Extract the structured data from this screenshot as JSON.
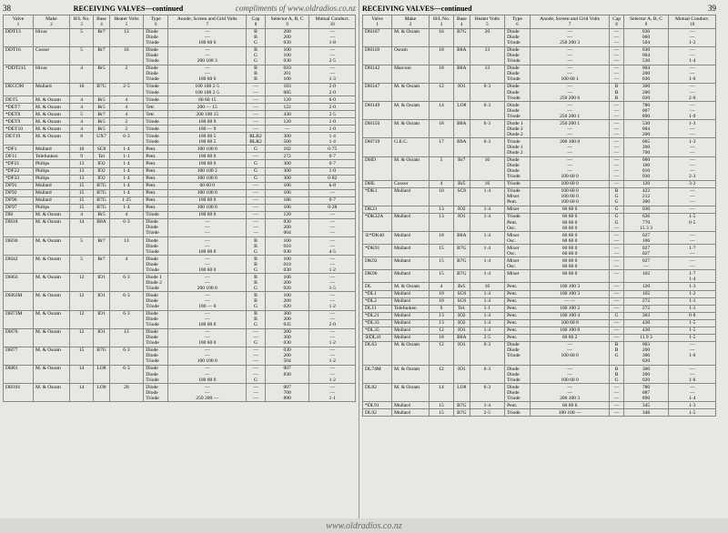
{
  "header": {
    "left_page_num": "38",
    "right_page_num": "39",
    "title_left": "RECEIVING VALVES—continued",
    "title_right": "RECEIVING VALVES—continued",
    "compliments": "compliments of www.oldradios.co.nz"
  },
  "columns": {
    "c1": "Valve",
    "c1n": "1",
    "c2": "Make",
    "c2n": "2",
    "c3": "H/L No.",
    "c3n": "3",
    "c4": "Base",
    "c4n": "4",
    "c5": "Heater Volts",
    "c5n": "5",
    "c6": "Type",
    "c6n": "6",
    "c7": "Anode, Screen and Grid Volts",
    "c7n": "7",
    "c8": "Cap",
    "c8n": "8",
    "c9": "Selector A, B, C",
    "c9n": "9",
    "c10": "Mutual Conduct.",
    "c10n": "10"
  },
  "left_rows": [
    {
      "v": "DDT13",
      "m": "Hivac",
      "hl": "5",
      "b": "Br7",
      "hv": "13",
      "t": "Diode\nDiode\nTriode",
      "a": "—\n—\n100  60  0",
      "c": "B\nB\nG",
      "s": "200\n200\n030",
      "mc": "—\n—\n1·8"
    },
    {
      "v": "DDT16",
      "m": "Cossor",
      "hl": "5",
      "b": "Br7",
      "hv": "16",
      "t": "Diode\nDiode\nTriode",
      "a": "—\n—\n200 100  3",
      "c": "B\nG\nG",
      "s": "100\n100\n030",
      "mc": "—\n—\n2·5"
    },
    {
      "v": "*DDT215",
      "m": "Hivac",
      "hl": "4",
      "b": "Br5",
      "hv": "2",
      "t": "Diode\nDiode\nTriode",
      "a": "—\n—\n100  60  0",
      "c": "B\nB\nB",
      "s": "010\n201\n100",
      "mc": "—\n—\n1·3"
    },
    {
      "v": "DECC90",
      "m": "Mullard",
      "hl": "16",
      "b": "B7G",
      "hv": "2·5",
      "t": "Triode\nTriode",
      "a": "100 100 2·5\n100 100 2·5",
      "c": "—\n—",
      "s": "183\n085",
      "mc": "2·0\n2·0"
    },
    {
      "v": "DET5",
      "m": "M. & Osram",
      "hl": "4",
      "b": "Br5",
      "hv": "4",
      "t": "Triode",
      "a": "60  60 15",
      "c": "—",
      "s": "120",
      "mc": "6·0"
    },
    {
      "v": "*DET7",
      "m": "M. & Osram",
      "hl": "4",
      "b": "Br5",
      "hv": "4",
      "t": "Tetr.",
      "a": "200 —  15",
      "c": "—",
      "s": "122",
      "mc": "2·0"
    },
    {
      "v": "*DET8",
      "m": "M. & Osram",
      "hl": "5",
      "b": "Br7",
      "hv": "4",
      "t": "Tetr.",
      "a": "200 100 15",
      "c": "—",
      "s": "430",
      "mc": "2·5"
    },
    {
      "v": "*DET9",
      "m": "M. & Osram",
      "hl": "4",
      "b": "Br5",
      "hv": "2",
      "t": "Triode",
      "a": "100  60  9",
      "c": "—",
      "s": "120",
      "mc": "1·0"
    },
    {
      "v": "*DET10",
      "m": "M. & Osram",
      "hl": "4",
      "b": "Br5",
      "hv": "2",
      "t": "Triode",
      "a": "100  —  9",
      "c": "—",
      "s": "—",
      "mc": "1·0"
    },
    {
      "v": "DET19",
      "m": "M. & Osram",
      "hl": "8",
      "b": "UX7",
      "hv": "6·3",
      "t": "Triode\nTriode",
      "a": "100  60  5\n100  60  5",
      "c": "RLB2\nBLR2",
      "s": "300\n500",
      "mc": "1·4\n1·4"
    },
    {
      "v": "*DF1",
      "m": "Mullard",
      "hl": "10",
      "b": "SC8",
      "hv": "1·4",
      "t": "Pent.",
      "a": "100 100  0",
      "c": "G",
      "s": "102",
      "mc": "0·75"
    },
    {
      "v": "DF11",
      "m": "Telefunken",
      "hl": "9",
      "b": "Tel",
      "hv": "1·1",
      "t": "Pent.",
      "a": "100  60  0",
      "c": "—",
      "s": "272",
      "mc": "0·7"
    },
    {
      "v": "*DF21",
      "m": "Philips",
      "hl": "13",
      "b": "IO2",
      "hv": "1·4",
      "t": "Pent.",
      "a": "100  60  0",
      "c": "G",
      "s": "300",
      "mc": "0·7"
    },
    {
      "v": "*DF22",
      "m": "Philips",
      "hl": "13",
      "b": "IO2",
      "hv": "1·4",
      "t": "Pent.",
      "a": "100 100  2",
      "c": "G",
      "s": "300",
      "mc": "1·0"
    },
    {
      "v": "*DF33",
      "m": "Philips",
      "hl": "13",
      "b": "IO2",
      "hv": "1·4",
      "t": "Pent.",
      "a": "100 100  0",
      "c": "G",
      "s": "300",
      "mc": "0·82"
    },
    {
      "v": "DF91",
      "m": "Mullard",
      "hl": "15",
      "b": "B7G",
      "hv": "1·4",
      "t": "Pent.",
      "a": "60  60  0",
      "c": "—",
      "s": "106",
      "mc": "h·8"
    },
    {
      "v": "DF92",
      "m": "Mullard",
      "hl": "15",
      "b": "B7G",
      "hv": "1·4",
      "t": "Pent.",
      "a": "100 100  0",
      "c": "—",
      "s": "106",
      "mc": "—"
    },
    {
      "v": "DF96",
      "m": "Mullard",
      "hl": "15",
      "b": "B7G",
      "hv": "1·25",
      "t": "Pent.",
      "a": "100  60  0",
      "c": "—",
      "s": "186",
      "mc": "0·7"
    },
    {
      "v": "DF97",
      "m": "Philips",
      "hl": "15",
      "b": "B7G",
      "hv": "1·4",
      "t": "Pent.",
      "a": "100 100  0",
      "c": "—",
      "s": "106",
      "mc": "0·28"
    },
    {
      "v": "DH",
      "m": "M. & Osram",
      "hl": "4",
      "b": "Br5",
      "hv": "4",
      "t": "Triode",
      "a": "100  60  0",
      "c": "—",
      "s": "120",
      "mc": "—"
    },
    {
      "v": "DH18",
      "m": "M. & Osram",
      "hl": "14",
      "b": "B8A",
      "hv": "6·3",
      "t": "Diode\nDiode\nTriode",
      "a": "—\n—\n—",
      "c": "—\n—\n—",
      "s": "030\n200\n004",
      "mc": "—\n—\n—"
    },
    {
      "v": "DH30",
      "m": "M. & Osram",
      "hl": "5",
      "b": "Br7",
      "hv": "13",
      "t": "Diode\nDiode\nTriode",
      "a": "—\n—\n100  60  0",
      "c": "B\nB\nG",
      "s": "100\n010\n030",
      "mc": "—\n—\n4·5"
    },
    {
      "v": "DH42",
      "m": "M. & Osram",
      "hl": "5",
      "b": "Br7",
      "hv": "4",
      "t": "Diode\nDiode\nTriode",
      "a": "—\n—\n100  60  0",
      "c": "B\nB\nG",
      "s": "100\n010\n030",
      "mc": "—\n—\n1·2"
    },
    {
      "v": "DH63",
      "m": "M. & Osram",
      "hl": "12",
      "b": "IO1",
      "hv": "6·3",
      "t": "Diode 1\nDiode 2\nTriode",
      "a": "—\n—\n200 100  0",
      "c": "B\nB\nG",
      "s": "106\n200\n020",
      "mc": "—\n—\n1·5"
    },
    {
      "v": "DH63M",
      "m": "M. & Osram",
      "hl": "12",
      "b": "IO1",
      "hv": "6·3",
      "t": "Diode\nDiode\nTriode",
      "a": "—\n—\n100  —  0",
      "c": "B\nB\nG",
      "s": "100\n200\n020",
      "mc": "—\n—\n1·2"
    },
    {
      "v": "DH73M",
      "m": "M. & Osram",
      "hl": "12",
      "b": "IO1",
      "hv": "6·3",
      "t": "Diode\nDiode\nTriode",
      "a": "—\n—\n100  60  0",
      "c": "B\nB\nG",
      "s": "300\n200\n035",
      "mc": "—\n—\n2·0"
    },
    {
      "v": "DH76",
      "m": "M. & Osram",
      "hl": "12",
      "b": "IO1",
      "hv": "13",
      "t": "Diode\nDiode\nTriode",
      "a": "—\n—\n100  60  0",
      "c": "—\n—\nG",
      "s": "200\n300\n030",
      "mc": "—\n—\n1·2"
    },
    {
      "v": "DH77",
      "m": "M. & Osram",
      "hl": "15",
      "b": "B7G",
      "hv": "6·3",
      "t": "Diode\nDiode\nTriode",
      "a": "—\n—\n100 100  0",
      "c": "—\n—\n—",
      "s": "030\n200\n504",
      "mc": "—\n—\n1·2"
    },
    {
      "v": "DH81",
      "m": "M. & Osram",
      "hl": "14",
      "b": "LO8",
      "hv": "6·3",
      "t": "Diode\nDiode\nTriode",
      "a": "—\n—\n100  60  0",
      "c": "—\n—\nG",
      "s": "007\n830",
      "mc": "—\n—\n1·2"
    },
    {
      "v": "DH101",
      "m": "M. & Osram",
      "hl": "14",
      "b": "LO8",
      "hv": "20",
      "t": "Diode\nDiode\nTriode",
      "a": "—\n—\n250 200  —",
      "c": "—\n—\n—",
      "s": "007\n700\n890",
      "mc": "—\n—\n1·1"
    }
  ],
  "right_rows": [
    {
      "v": "DH107",
      "m": "M. & Osram",
      "hl": "16",
      "b": "B7G",
      "hv": "20",
      "t": "Diode\nDiode\nTriode",
      "a": "—\n—\n250 200  3",
      "c": "—\n—\n—",
      "s": "030\n060\n504",
      "mc": "—\n—\n1·2"
    },
    {
      "v": "DH118",
      "m": "Osram",
      "hl": "18",
      "b": "B8A",
      "hv": "13",
      "t": "Diode\nDiode\nTriode",
      "a": "—\n—\n—",
      "c": "—\n—\n—",
      "s": "030\n004\n530",
      "mc": "—\n—\n1·4"
    },
    {
      "v": "DH142",
      "m": "Marconi",
      "hl": "18",
      "b": "B8A",
      "hv": "13",
      "t": "Diode\nDiode\nTriode",
      "a": "—\n—\n100  60  1",
      "c": "—\n—\n—",
      "s": "004\n200\n030",
      "mc": "—\n—\n1·6"
    },
    {
      "v": "DH147",
      "m": "M. & Osram",
      "hl": "12",
      "b": "IO1",
      "hv": "6·3",
      "t": "Diode\nDiode\nTriode",
      "a": "—\n—\n250 200  6",
      "c": "B\nB\nB",
      "s": "300\n200\n020",
      "mc": "—\n—\n2·0"
    },
    {
      "v": "DH149",
      "m": "M. & Osram",
      "hl": "14",
      "b": "LO8",
      "hv": "6·3",
      "t": "Diode\nDiode\nTriode",
      "a": "—\n—\n250 200  1",
      "c": "—\n—\n—",
      "s": "780\n007\n890",
      "mc": "—\n—\n1·0"
    },
    {
      "v": "DH150",
      "m": "M. & Osram",
      "hl": "18",
      "b": "B8A",
      "hv": "6·3",
      "t": "Diode 1\nDiode 2\nDiode 2",
      "a": "250 200  1\n—\n—",
      "c": "—\n—\n—",
      "s": "530\n004\n200",
      "mc": "1·3\n—\n—"
    },
    {
      "v": "DH719",
      "m": "G.E.C.",
      "hl": "17",
      "b": "B9A",
      "hv": "6·3",
      "t": "Triode\nDiode 1\nDiode 2",
      "a": "200 100  0\n—\n—",
      "c": "—\n—\n—",
      "s": "065\n200\n700",
      "mc": "1·3\n—\n—"
    },
    {
      "v": "DHD",
      "m": "M. & Osram",
      "hl": "5",
      "b": "Br7",
      "hv": "16",
      "t": "Diode\nDiode\nDiode\nTriode",
      "a": "—\n—\n—\n100  60  0",
      "c": "—\n—\n—\n—",
      "s": "060\n100\n010\n030",
      "mc": "—\n—\n—\n2·3"
    },
    {
      "v": "DHL",
      "m": "Cossor",
      "hl": "4",
      "b": "Br5",
      "hv": "16",
      "t": "Triode",
      "a": "100  60  0",
      "c": "—",
      "s": "120",
      "mc": "3·2"
    },
    {
      "v": "*DK1",
      "m": "Mullard",
      "hl": "10",
      "b": "SC8",
      "hv": "1·4",
      "t": "Triode\nMixer\nPent.",
      "a": "100  60  0\n100  60  0\n100  60  0",
      "c": "B\nG\nG",
      "s": "422\n212\n300",
      "mc": "—\n—\n—"
    },
    {
      "v": "DK21",
      "m": "",
      "hl": "13",
      "b": "IO2",
      "hv": "1·4",
      "t": "Mixer",
      "a": "60  60  0",
      "c": "G",
      "s": "030",
      "mc": "—"
    },
    {
      "v": "*DK32A",
      "m": "Mullard",
      "hl": "13",
      "b": "IO1",
      "hv": "1·4",
      "t": "Triode\nPent.\nOsc.",
      "a": "60  60  0\n60  60  0\n60  60  0",
      "c": "G\nG\n—",
      "s": "636\n770\n15 3 3",
      "mc": "1·5\n0·5"
    },
    {
      "v": "①*DK40",
      "m": "Mullard",
      "hl": "18",
      "b": "B8A",
      "hv": "1·4",
      "t": "Mixer\nOsc.",
      "a": "60  60  0\n60  60  0",
      "c": "—\n—",
      "s": "027\n106",
      "mc": "—\n—"
    },
    {
      "v": "*DK91",
      "m": "Mullard",
      "hl": "15",
      "b": "B7G",
      "hv": "1·4",
      "t": "Mixer\nOsc.",
      "a": "60  60  0\n60  60  0",
      "c": "—\n—",
      "s": "027\n027",
      "mc": "1·7\n—"
    },
    {
      "v": "DK92",
      "m": "Mullard",
      "hl": "15",
      "b": "B7G",
      "hv": "1·4",
      "t": "Mixer\nOsc.",
      "a": "60  60  0\n60  60  0",
      "c": "—\n—",
      "s": "027\n—",
      "mc": "—\n—"
    },
    {
      "v": "DK96",
      "m": "Mullard",
      "hl": "15",
      "b": "B7G",
      "hv": "1·4",
      "t": "Mixer",
      "a": "60  60  0",
      "c": "—",
      "s": "102",
      "mc": "1·7\n1·4"
    },
    {
      "v": "DL",
      "m": "M. & Osram",
      "hl": "4",
      "b": "Br5",
      "hv": "16",
      "t": "Pent.",
      "a": "100 100  3",
      "c": "—",
      "s": "120",
      "mc": "1·3"
    },
    {
      "v": "*DL1",
      "m": "Mullard",
      "hl": "10",
      "b": "SC8",
      "hv": "1·4",
      "t": "Pent.",
      "a": "100 100  3",
      "c": "—",
      "s": "102",
      "mc": "1·2"
    },
    {
      "v": "*DL2",
      "m": "Mullard",
      "hl": "10",
      "b": "SC8",
      "hv": "1·4",
      "t": "Pent.",
      "a": "—  —",
      "c": "—",
      "s": "272",
      "mc": "1·1"
    },
    {
      "v": "DL11",
      "m": "Telefunken",
      "hl": "9",
      "b": "Tel.",
      "hv": "1·1",
      "t": "Pent.",
      "a": "100 100  2",
      "c": "—",
      "s": "272",
      "mc": "1·1"
    },
    {
      "v": "*DL21",
      "m": "Mullard",
      "hl": "13",
      "b": "IO2",
      "hv": "1·4",
      "t": "Pent.",
      "a": "100 100  4",
      "c": "G",
      "s": "303",
      "mc": "0·8"
    },
    {
      "v": "*DL33",
      "m": "Mullard",
      "hl": "13",
      "b": "IO2",
      "hv": "1·4",
      "t": "Pent.",
      "a": "100  60  8",
      "c": "—",
      "s": "430",
      "mc": "1·5"
    },
    {
      "v": "*DL35",
      "m": "Mullard",
      "hl": "12",
      "b": "IO1",
      "hv": "1·4",
      "t": "Pent.",
      "a": "100 100  8",
      "c": "—",
      "s": "430",
      "mc": "1·5"
    },
    {
      "v": "①DL41",
      "m": "Mullard",
      "hl": "18",
      "b": "B8A",
      "hv": "2·5",
      "t": "Pent.",
      "a": "60  60  2",
      "c": "—",
      "s": "11 9 3",
      "mc": "1·5"
    },
    {
      "v": "DL63",
      "m": "M. & Osram",
      "hl": "12",
      "b": "IO1",
      "hv": "6·3",
      "t": "Diode\nDiode\nTriode",
      "a": "—\n—\n100  60  0",
      "c": "B\nB\nG",
      "s": "063\n200\n300\n020",
      "mc": "—\n—\n1·6"
    },
    {
      "v": "DL74M",
      "m": "M. & Osram",
      "hl": "12",
      "b": "IO1",
      "hv": "6·3",
      "t": "Diode\nDiode\nTriode",
      "a": "—\n—\n100  60  0",
      "c": "B\nB\nG",
      "s": "300\n200\n020",
      "mc": "—\n—\n1·6"
    },
    {
      "v": "DL82",
      "m": "M. & Osram",
      "hl": "14",
      "b": "LO8",
      "hv": "6·3",
      "t": "Diode\nDiode\nTriode",
      "a": "—\n—\n200 100  3",
      "c": "—\n—\n—",
      "s": "780\n087\n890",
      "mc": "—\n—\n1·4"
    },
    {
      "v": "*DL91",
      "m": "Mullard",
      "hl": "15",
      "b": "B7G",
      "hv": "1·4",
      "t": "Pent.",
      "a": "60  60  6",
      "c": "—",
      "s": "345",
      "mc": "1·3"
    },
    {
      "v": "DL92",
      "m": "Mullard",
      "hl": "15",
      "b": "B7G",
      "hv": "2·5",
      "t": "Triode",
      "a": "100 100  —",
      "c": "—",
      "s": "348",
      "mc": "1·5"
    }
  ],
  "footer": {
    "url": "www.oldradios.co.nz"
  }
}
